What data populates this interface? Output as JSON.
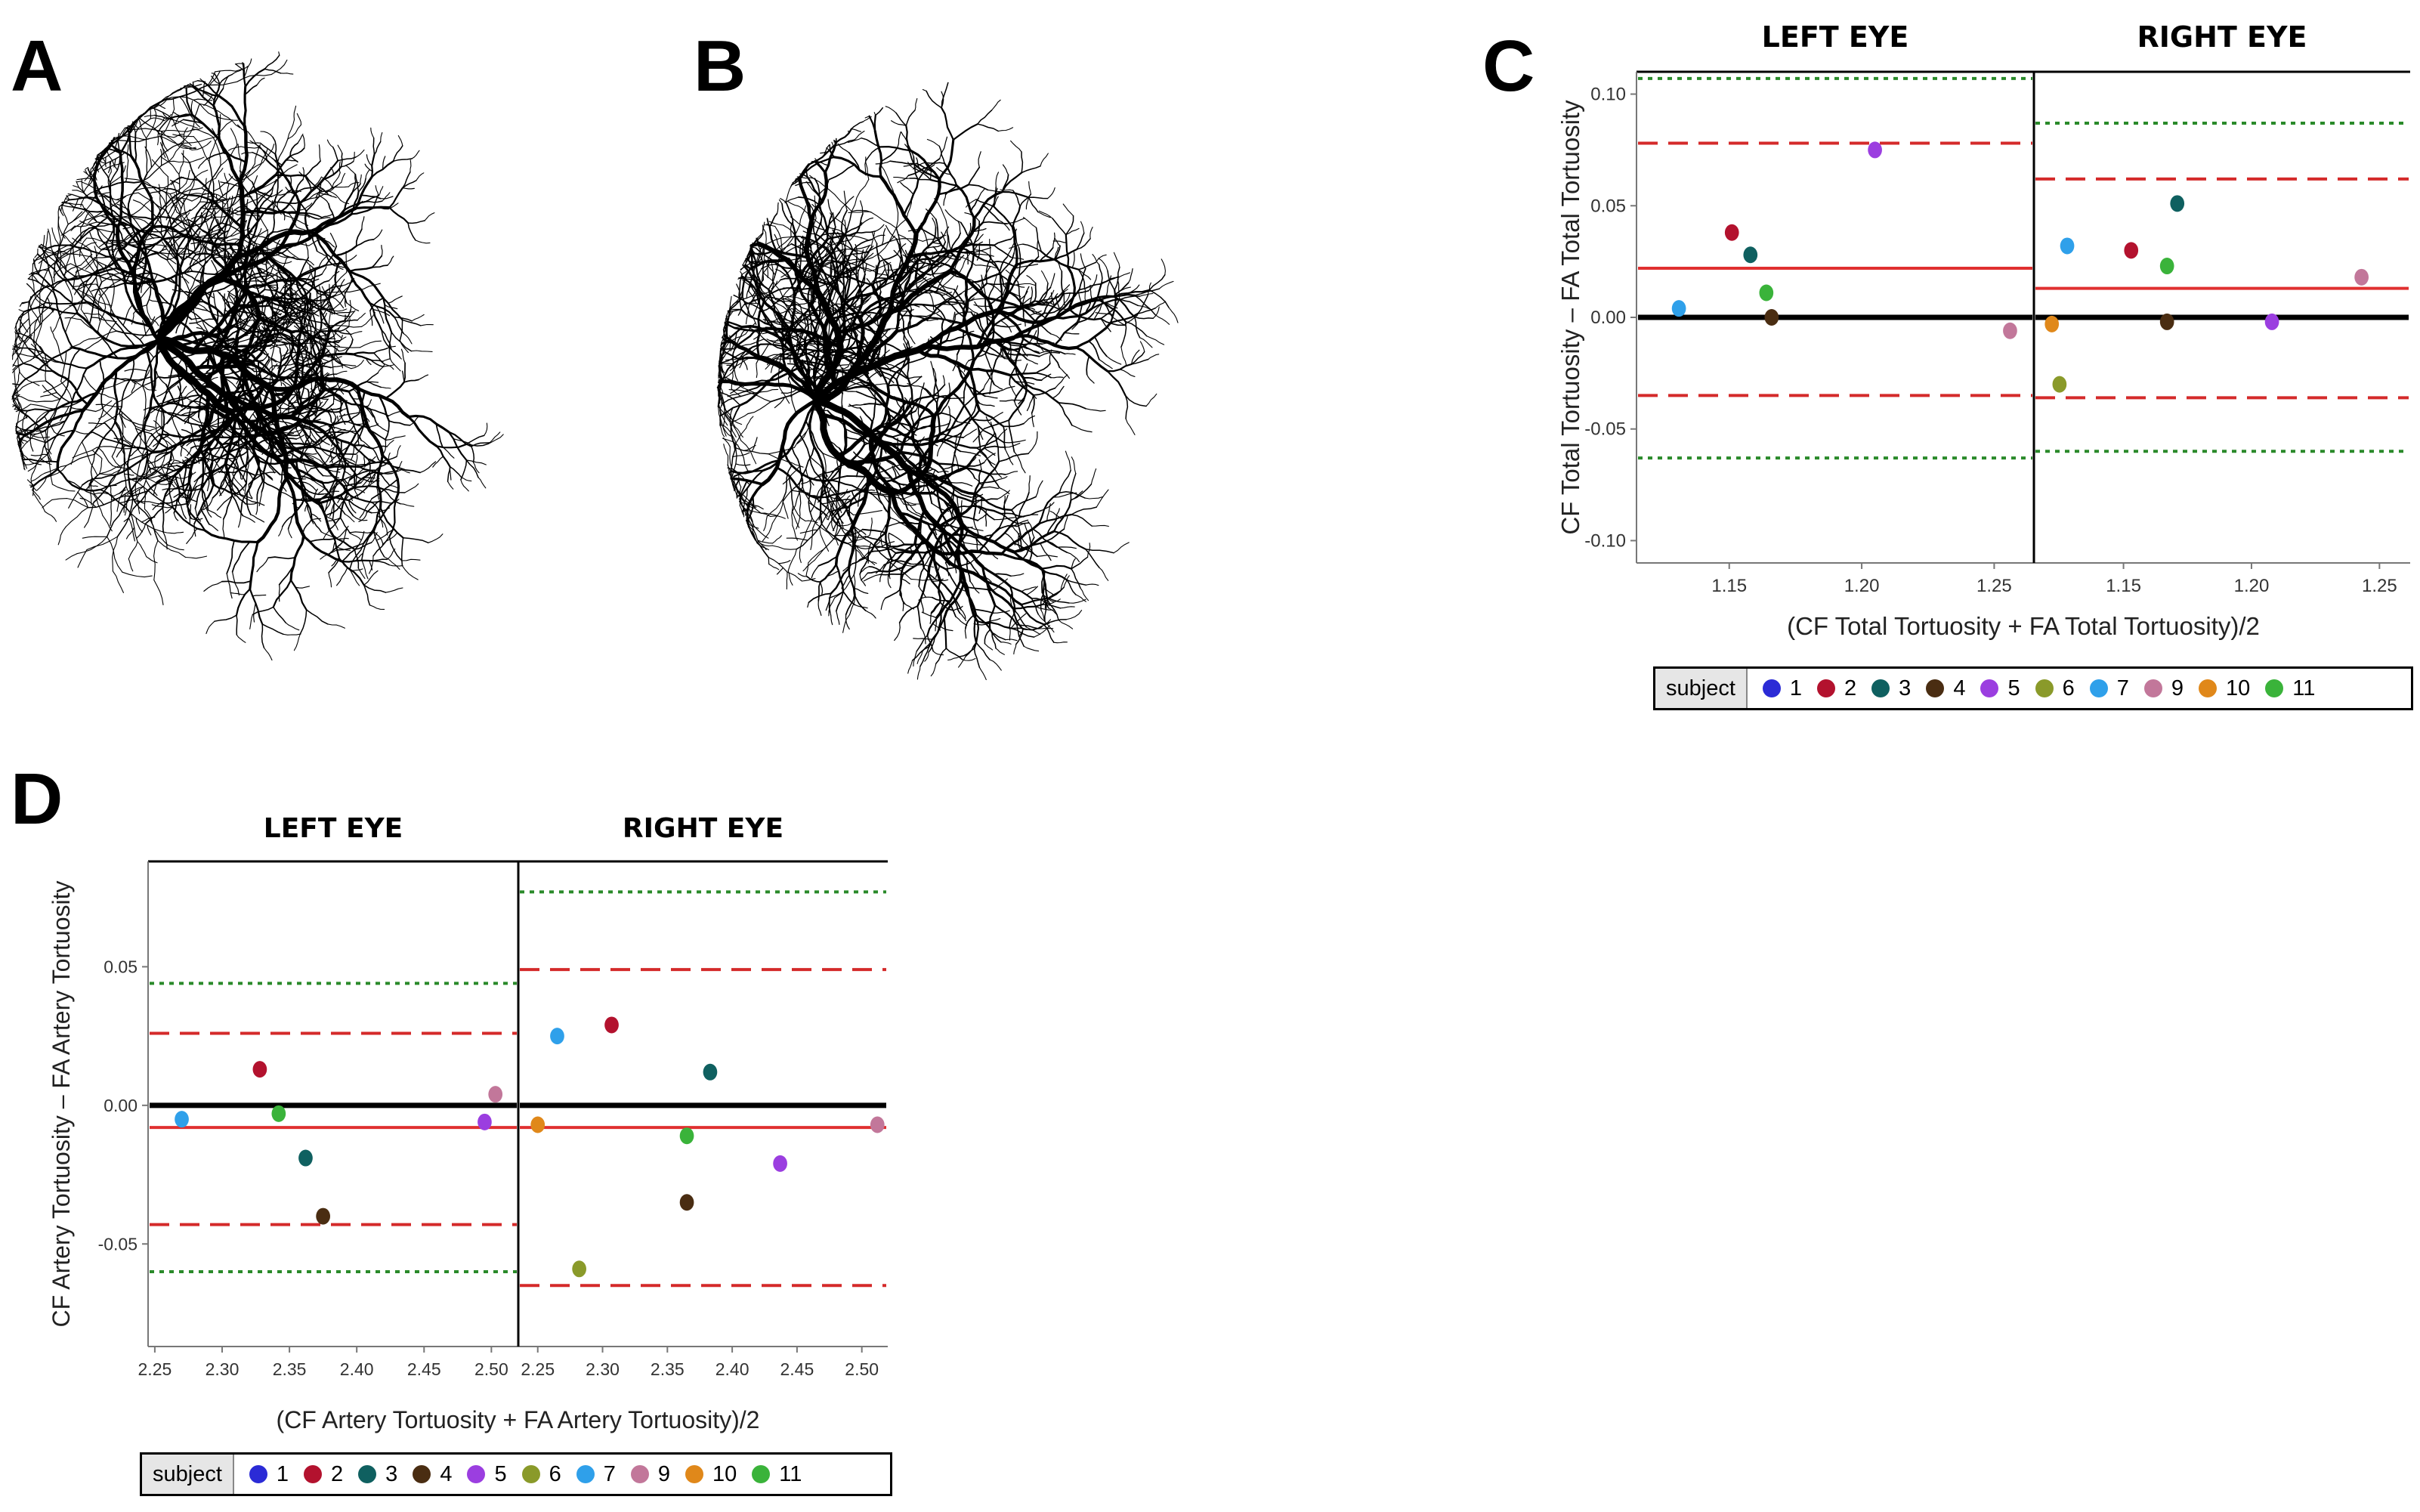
{
  "panels": {
    "a": "A",
    "b": "B",
    "c": "C",
    "d": "D"
  },
  "legend": {
    "title": "subject",
    "items": [
      {
        "id": "1",
        "label": "1",
        "color": "#2b2bd6"
      },
      {
        "id": "2",
        "label": "2",
        "color": "#b3122e"
      },
      {
        "id": "3",
        "label": "3",
        "color": "#0f6060"
      },
      {
        "id": "4",
        "label": "4",
        "color": "#4a2d12"
      },
      {
        "id": "5",
        "label": "5",
        "color": "#9b3ee0"
      },
      {
        "id": "6",
        "label": "6",
        "color": "#8a9a2a"
      },
      {
        "id": "7",
        "label": "7",
        "color": "#2fa0ea"
      },
      {
        "id": "9",
        "label": "9",
        "color": "#c2779a"
      },
      {
        "id": "10",
        "label": "10",
        "color": "#e0881a"
      },
      {
        "id": "11",
        "label": "11",
        "color": "#3ab33a"
      }
    ]
  },
  "chart_data": [
    {
      "id": "C",
      "type": "scatter",
      "subtype": "bland-altman",
      "ylabel": "CF Total Tortuosity – FA Total Tortuosity",
      "xlabel": "(CF Total Tortuosity + FA Total Tortuosity)/2",
      "ylim": [
        -0.11,
        0.11
      ],
      "yticks": [
        0.1,
        0.05,
        0.0,
        -0.05,
        -0.1
      ],
      "ytick_labels": [
        "0.10",
        "0.05",
        "0.00",
        "-0.05",
        "-0.10"
      ],
      "panels": [
        {
          "title": "LEFT EYE",
          "xlim": [
            1.115,
            1.265
          ],
          "xticks": [
            1.15,
            1.2,
            1.25
          ],
          "xtick_labels": [
            "1.15",
            "1.20",
            "1.25"
          ],
          "mean": 0.022,
          "loa_upper": 0.078,
          "loa_lower": -0.035,
          "ci_upper": 0.107,
          "ci_lower": -0.063,
          "points": [
            {
              "subject": "2",
              "x": 1.151,
              "y": 0.038
            },
            {
              "subject": "3",
              "x": 1.158,
              "y": 0.028
            },
            {
              "subject": "7",
              "x": 1.131,
              "y": 0.004
            },
            {
              "subject": "11",
              "x": 1.164,
              "y": 0.011
            },
            {
              "subject": "4",
              "x": 1.166,
              "y": 0.0
            },
            {
              "subject": "5",
              "x": 1.205,
              "y": 0.075
            },
            {
              "subject": "9",
              "x": 1.256,
              "y": -0.006
            }
          ]
        },
        {
          "title": "RIGHT EYE",
          "xlim": [
            1.115,
            1.262
          ],
          "xticks": [
            1.15,
            1.2,
            1.25
          ],
          "xtick_labels": [
            "1.15",
            "1.20",
            "1.25"
          ],
          "mean": 0.013,
          "loa_upper": 0.062,
          "loa_lower": -0.036,
          "ci_upper": 0.087,
          "ci_lower": -0.06,
          "points": [
            {
              "subject": "7",
              "x": 1.128,
              "y": 0.032
            },
            {
              "subject": "2",
              "x": 1.153,
              "y": 0.03
            },
            {
              "subject": "3",
              "x": 1.171,
              "y": 0.051
            },
            {
              "subject": "11",
              "x": 1.167,
              "y": 0.023
            },
            {
              "subject": "10",
              "x": 1.122,
              "y": -0.003
            },
            {
              "subject": "6",
              "x": 1.125,
              "y": -0.03
            },
            {
              "subject": "4",
              "x": 1.167,
              "y": -0.002
            },
            {
              "subject": "5",
              "x": 1.208,
              "y": -0.002
            },
            {
              "subject": "9",
              "x": 1.243,
              "y": 0.018
            }
          ]
        }
      ]
    },
    {
      "id": "D",
      "type": "scatter",
      "subtype": "bland-altman",
      "ylabel": "CF Artery Tortuosity – FA Artery  Tortuosity",
      "xlabel": "(CF Artery Tortuosity + FA Artery Tortuosity)/2",
      "ylim": [
        -0.087,
        0.088
      ],
      "yticks": [
        0.05,
        0.0,
        -0.05
      ],
      "ytick_labels": [
        "0.05",
        "0.00",
        "-0.05"
      ],
      "panels": [
        {
          "title": "LEFT EYE",
          "xlim": [
            2.245,
            2.52
          ],
          "xticks": [
            2.25,
            2.3,
            2.35,
            2.4,
            2.45,
            2.5
          ],
          "xtick_labels": [
            "2.25",
            "2.30",
            "2.35",
            "2.40",
            "2.45",
            "2.50"
          ],
          "mean": -0.008,
          "loa_upper": 0.026,
          "loa_lower": -0.043,
          "ci_upper": 0.044,
          "ci_lower": -0.06,
          "points": [
            {
              "subject": "7",
              "x": 2.27,
              "y": -0.005
            },
            {
              "subject": "2",
              "x": 2.328,
              "y": 0.013
            },
            {
              "subject": "11",
              "x": 2.342,
              "y": -0.003
            },
            {
              "subject": "3",
              "x": 2.362,
              "y": -0.019
            },
            {
              "subject": "4",
              "x": 2.375,
              "y": -0.04
            },
            {
              "subject": "5",
              "x": 2.495,
              "y": -0.006
            },
            {
              "subject": "9",
              "x": 2.503,
              "y": 0.004
            }
          ]
        },
        {
          "title": "RIGHT EYE",
          "xlim": [
            2.235,
            2.52
          ],
          "xticks": [
            2.25,
            2.3,
            2.35,
            2.4,
            2.45,
            2.5
          ],
          "xtick_labels": [
            "2.25",
            "2.30",
            "2.35",
            "2.40",
            "2.45",
            "2.50"
          ],
          "mean": -0.008,
          "loa_upper": 0.049,
          "loa_lower": -0.065,
          "ci_upper": 0.077,
          "ci_lower": null,
          "points": [
            {
              "subject": "7",
              "x": 2.265,
              "y": 0.025
            },
            {
              "subject": "2",
              "x": 2.307,
              "y": 0.029
            },
            {
              "subject": "3",
              "x": 2.383,
              "y": 0.012
            },
            {
              "subject": "10",
              "x": 2.25,
              "y": -0.007
            },
            {
              "subject": "11",
              "x": 2.365,
              "y": -0.011
            },
            {
              "subject": "4",
              "x": 2.365,
              "y": -0.035
            },
            {
              "subject": "6",
              "x": 2.282,
              "y": -0.059
            },
            {
              "subject": "5",
              "x": 2.437,
              "y": -0.021
            },
            {
              "subject": "9",
              "x": 2.512,
              "y": -0.007
            }
          ]
        }
      ]
    }
  ]
}
